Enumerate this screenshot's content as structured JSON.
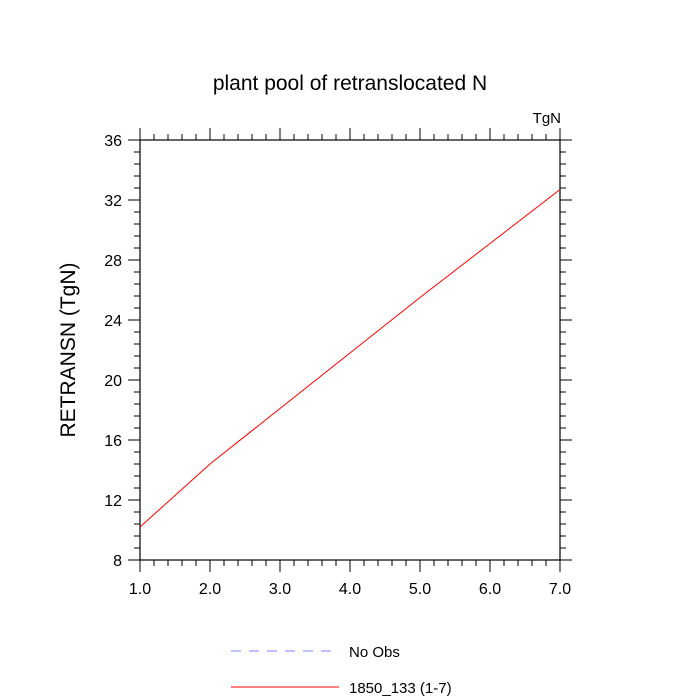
{
  "chart_data": {
    "type": "line",
    "title": "plant pool of retranslocated N",
    "units": "TgN",
    "ylabel": "RETRANSN  (TgN)",
    "xlabel": "",
    "xlim": [
      1,
      7
    ],
    "ylim": [
      8,
      36
    ],
    "xticks": [
      "1.0",
      "2.0",
      "3.0",
      "4.0",
      "5.0",
      "6.0",
      "7.0"
    ],
    "yticks": [
      "8",
      "12",
      "16",
      "20",
      "24",
      "28",
      "32",
      "36"
    ],
    "x_tick_values": [
      1,
      2,
      3,
      4,
      5,
      6,
      7
    ],
    "y_tick_values": [
      8,
      12,
      16,
      20,
      24,
      28,
      32,
      36
    ],
    "grid": false,
    "legend_position": "bottom",
    "series": [
      {
        "name": "No Obs",
        "color": "#8080ff",
        "dash": "dashed",
        "x": [],
        "y": []
      },
      {
        "name": "1850_133 (1-7)",
        "color": "#ff0000",
        "dash": "solid",
        "x": [
          1,
          2,
          3,
          4,
          5,
          6,
          7
        ],
        "y": [
          10.2,
          14.4,
          18.1,
          21.8,
          25.5,
          29.1,
          32.7
        ]
      }
    ]
  }
}
